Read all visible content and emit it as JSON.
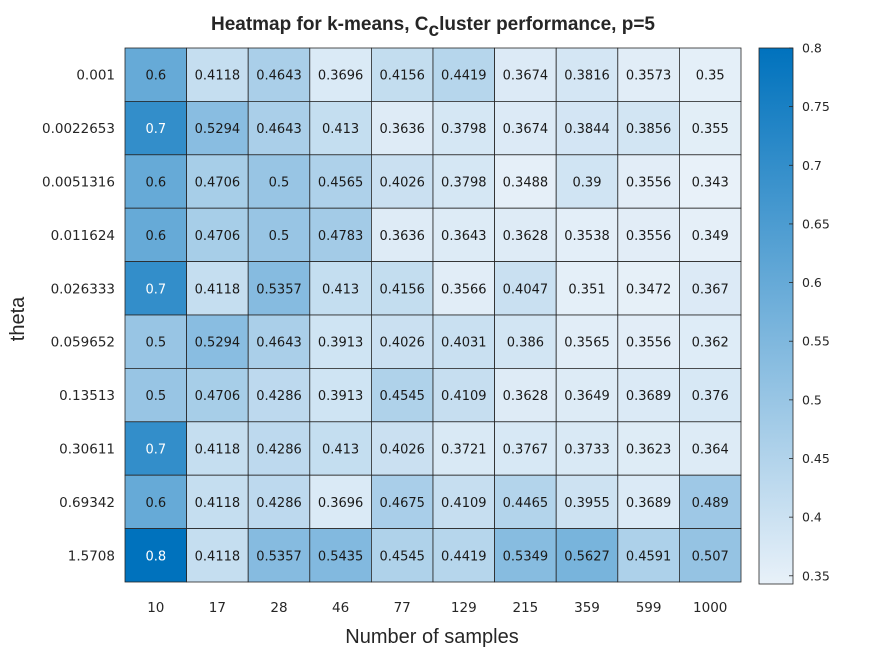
{
  "chart_data": {
    "type": "heatmap",
    "title_parts": [
      "Heatmap for k-means, C",
      "c",
      "luster performance, p=5"
    ],
    "xlabel": "Number of samples",
    "ylabel": "theta",
    "x_categories": [
      "10",
      "17",
      "28",
      "46",
      "77",
      "129",
      "215",
      "359",
      "599",
      "1000"
    ],
    "y_categories": [
      "0.001",
      "0.0022653",
      "0.0051316",
      "0.011624",
      "0.026333",
      "0.059652",
      "0.13513",
      "0.30611",
      "0.69342",
      "1.5708"
    ],
    "values": [
      [
        "0.6",
        "0.4118",
        "0.4643",
        "0.3696",
        "0.4156",
        "0.4419",
        "0.3674",
        "0.3816",
        "0.3573",
        "0.35"
      ],
      [
        "0.7",
        "0.5294",
        "0.4643",
        "0.413",
        "0.3636",
        "0.3798",
        "0.3674",
        "0.3844",
        "0.3856",
        "0.355"
      ],
      [
        "0.6",
        "0.4706",
        "0.5",
        "0.4565",
        "0.4026",
        "0.3798",
        "0.3488",
        "0.39",
        "0.3556",
        "0.343"
      ],
      [
        "0.6",
        "0.4706",
        "0.5",
        "0.4783",
        "0.3636",
        "0.3643",
        "0.3628",
        "0.3538",
        "0.3556",
        "0.349"
      ],
      [
        "0.7",
        "0.4118",
        "0.5357",
        "0.413",
        "0.4156",
        "0.3566",
        "0.4047",
        "0.351",
        "0.3472",
        "0.367"
      ],
      [
        "0.5",
        "0.5294",
        "0.4643",
        "0.3913",
        "0.4026",
        "0.4031",
        "0.386",
        "0.3565",
        "0.3556",
        "0.362"
      ],
      [
        "0.5",
        "0.4706",
        "0.4286",
        "0.3913",
        "0.4545",
        "0.4109",
        "0.3628",
        "0.3649",
        "0.3689",
        "0.376"
      ],
      [
        "0.7",
        "0.4118",
        "0.4286",
        "0.413",
        "0.4026",
        "0.3721",
        "0.3767",
        "0.3733",
        "0.3623",
        "0.364"
      ],
      [
        "0.6",
        "0.4118",
        "0.4286",
        "0.3696",
        "0.4675",
        "0.4109",
        "0.4465",
        "0.3955",
        "0.3689",
        "0.489"
      ],
      [
        "0.8",
        "0.4118",
        "0.5357",
        "0.5435",
        "0.4545",
        "0.4419",
        "0.5349",
        "0.5627",
        "0.4591",
        "0.507"
      ]
    ],
    "colorbar": {
      "min": 0.343,
      "max": 0.8,
      "ticks": [
        "0.35",
        "0.4",
        "0.45",
        "0.5",
        "0.55",
        "0.6",
        "0.65",
        "0.7",
        "0.75",
        "0.8"
      ],
      "color_low": "#E8F1F9",
      "color_high": "#0072BD"
    }
  }
}
